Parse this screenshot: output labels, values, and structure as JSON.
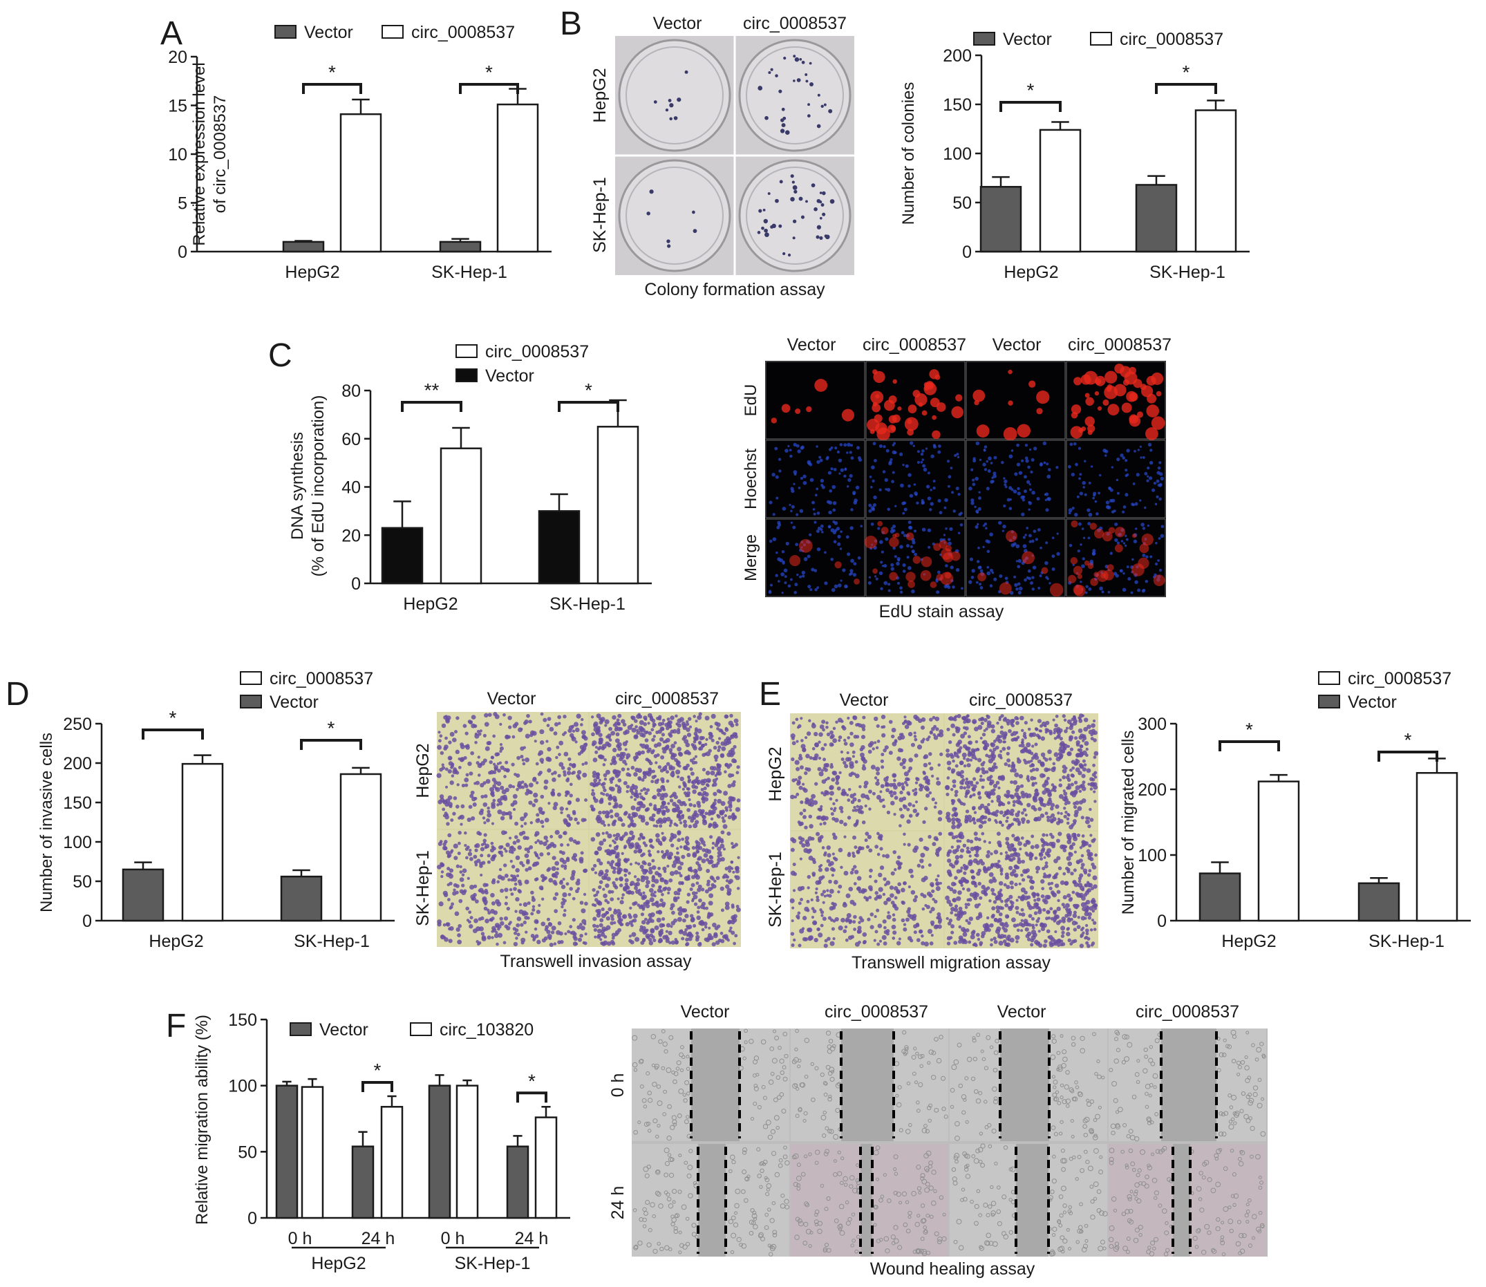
{
  "figure": {
    "panels": {
      "A": {
        "letter": "A"
      },
      "B": {
        "letter": "B",
        "photo": {
          "cols": [
            "Vector",
            "circ_0008537"
          ],
          "rows": [
            "HepG2",
            "SK-Hep-1"
          ],
          "caption": "Colony formation assay",
          "colonies": [
            [
              8,
              30
            ],
            [
              6,
              40
            ]
          ]
        }
      },
      "C": {
        "letter": "C",
        "photo": {
          "cols": [
            "Vector",
            "circ_0008537",
            "Vector",
            "circ_0008537"
          ],
          "rows": [
            "EdU",
            "Hoechst",
            "Merge"
          ],
          "caption": "EdU stain assay"
        }
      },
      "D": {
        "letter": "D",
        "photo": {
          "cols": [
            "Vector",
            "circ_0008537"
          ],
          "rows": [
            "HepG2",
            "SK-Hep-1"
          ],
          "caption": "Transwell invasion assay"
        }
      },
      "E": {
        "letter": "E",
        "photo": {
          "cols": [
            "Vector",
            "circ_0008537"
          ],
          "rows": [
            "HepG2",
            "SK-Hep-1"
          ],
          "caption": "Transwell migration assay"
        }
      },
      "F": {
        "letter": "F",
        "groups": [
          "HepG2",
          "SK-Hep-1"
        ],
        "photo": {
          "cols": [
            "Vector",
            "circ_0008537",
            "Vector",
            "circ_0008537"
          ],
          "rows": [
            "0 h",
            "24 h"
          ],
          "caption": "Wound healing assay"
        }
      }
    },
    "colors": {
      "vector": "#5c5c5c",
      "vector_c": "#0d0d0d",
      "circ": "#ffffff",
      "edu": "#e8281c",
      "hoechst": "#2747c7",
      "crystal_violet": "#6a4fa0"
    }
  },
  "chart_data": [
    {
      "id": "A",
      "type": "bar",
      "categories": [
        "HepG2",
        "SK-Hep-1"
      ],
      "ylabel": "Relative expression level\nof circ_0008537",
      "ylim": [
        0,
        20
      ],
      "yticks": [
        0,
        5,
        10,
        15,
        20
      ],
      "legend_position": "top",
      "series": [
        {
          "name": "Vector",
          "values": [
            1.0,
            1.0
          ],
          "errors": [
            0.1,
            0.3
          ]
        },
        {
          "name": "circ_0008537",
          "values": [
            14.1,
            15.1
          ],
          "errors": [
            1.5,
            1.6
          ]
        }
      ],
      "significance": [
        "*",
        "*"
      ]
    },
    {
      "id": "B",
      "type": "bar",
      "categories": [
        "HepG2",
        "SK-Hep-1"
      ],
      "ylabel": "Number of colonies",
      "ylim": [
        0,
        200
      ],
      "yticks": [
        0,
        50,
        100,
        150,
        200
      ],
      "legend_position": "top",
      "series": [
        {
          "name": "Vector",
          "values": [
            66,
            68
          ],
          "errors": [
            10,
            9
          ]
        },
        {
          "name": "circ_0008537",
          "values": [
            124,
            144
          ],
          "errors": [
            8,
            10
          ]
        }
      ],
      "significance": [
        "*",
        "*"
      ]
    },
    {
      "id": "C",
      "type": "bar",
      "categories": [
        "HepG2",
        "SK-Hep-1"
      ],
      "ylabel": "DNA synthesis\n(% of EdU incorporation)",
      "ylim": [
        0,
        80
      ],
      "yticks": [
        0,
        20,
        40,
        60,
        80
      ],
      "legend_position": "top",
      "series": [
        {
          "name": "Vector",
          "values": [
            23,
            30
          ],
          "errors": [
            11,
            7
          ]
        },
        {
          "name": "circ_0008537",
          "values": [
            56,
            65
          ],
          "errors": [
            8.5,
            11
          ]
        }
      ],
      "significance": [
        "**",
        "*"
      ]
    },
    {
      "id": "D",
      "type": "bar",
      "categories": [
        "HepG2",
        "SK-Hep-1"
      ],
      "ylabel": "Number of invasive cells",
      "ylim": [
        0,
        250
      ],
      "yticks": [
        0,
        50,
        100,
        150,
        200,
        250
      ],
      "legend_position": "top",
      "series": [
        {
          "name": "Vector",
          "values": [
            65,
            56
          ],
          "errors": [
            9,
            8
          ]
        },
        {
          "name": "circ_0008537",
          "values": [
            199,
            186
          ],
          "errors": [
            11,
            8
          ]
        }
      ],
      "significance": [
        "*",
        "*"
      ]
    },
    {
      "id": "E",
      "type": "bar",
      "categories": [
        "HepG2",
        "SK-Hep-1"
      ],
      "ylabel": "Number of migrated cells",
      "ylim": [
        0,
        300
      ],
      "yticks": [
        0,
        100,
        200,
        300
      ],
      "legend_position": "top-right",
      "series": [
        {
          "name": "Vector",
          "values": [
            72,
            57
          ],
          "errors": [
            17,
            8
          ]
        },
        {
          "name": "circ_0008537",
          "values": [
            212,
            225
          ],
          "errors": [
            10,
            22
          ]
        }
      ],
      "significance": [
        "*",
        "*"
      ]
    },
    {
      "id": "F",
      "type": "bar",
      "categories": [
        "0 h",
        "24 h",
        "0 h",
        "24 h"
      ],
      "ylabel": "Relative migration ability (%)",
      "ylim": [
        0,
        150
      ],
      "yticks": [
        0,
        50,
        100,
        150
      ],
      "legend_position": "top",
      "series": [
        {
          "name": "Vector",
          "values": [
            100,
            54,
            100,
            54
          ],
          "errors": [
            3,
            11,
            8,
            8
          ]
        },
        {
          "name": "circ_103820",
          "values": [
            99,
            84,
            100,
            76
          ],
          "errors": [
            6,
            8,
            4,
            8
          ]
        }
      ],
      "significance": [
        "",
        "*",
        "",
        "*"
      ]
    }
  ]
}
